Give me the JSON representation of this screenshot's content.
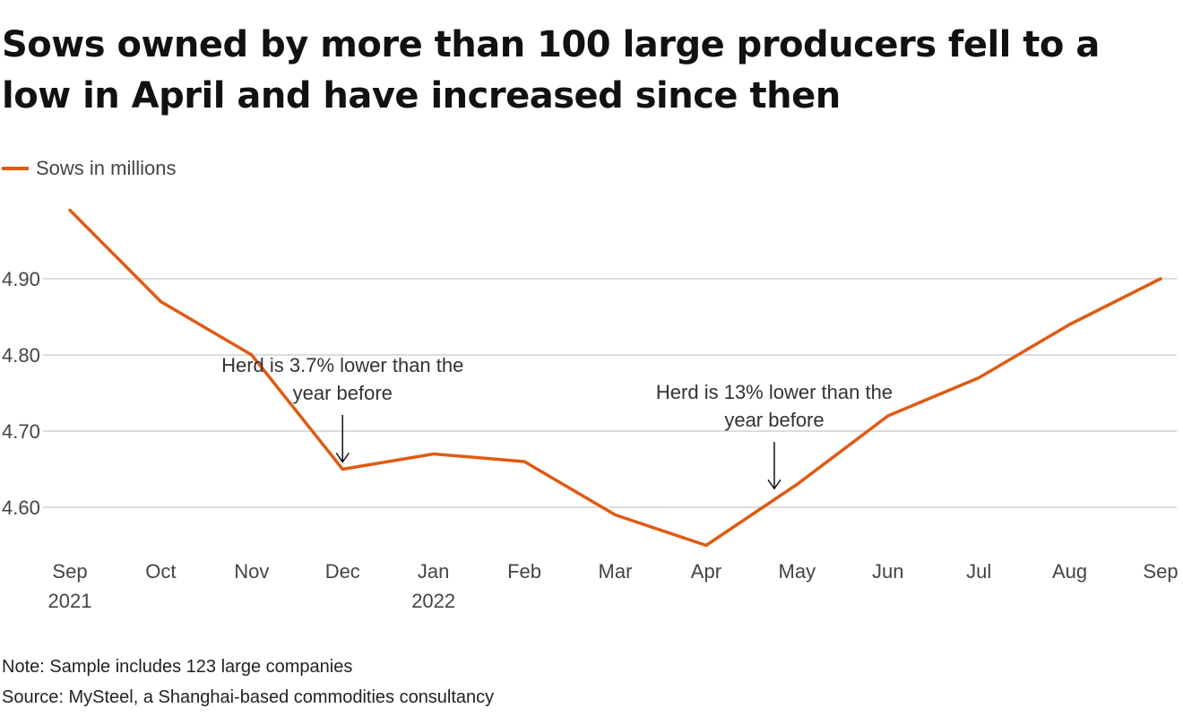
{
  "title": "Sows owned by more than 100 large producers fell to a low in April and have increased since then",
  "legend": {
    "label": "Sows in millions",
    "color": "#e05a12"
  },
  "notes": {
    "note": "Note: Sample includes 123 large companies",
    "source": "Source: MySteel, a Shanghai-based commodities consultancy"
  },
  "chart_data": {
    "type": "line",
    "title": "Sows owned by more than 100 large producers fell to a low in April and have increased since then",
    "xlabel": "",
    "ylabel": "Sows in millions",
    "categories": [
      "Sep",
      "Oct",
      "Nov",
      "Dec",
      "Jan",
      "Feb",
      "Mar",
      "Apr",
      "May",
      "Jun",
      "Jul",
      "Aug",
      "Sep"
    ],
    "category_sublabels": [
      "2021",
      "",
      "",
      "",
      "2022",
      "",
      "",
      "",
      "",
      "",
      "",
      "",
      ""
    ],
    "series": [
      {
        "name": "Sows in millions",
        "values": [
          4.99,
          4.87,
          4.8,
          4.65,
          4.67,
          4.66,
          4.59,
          4.55,
          4.63,
          4.72,
          4.77,
          4.84,
          4.9
        ]
      }
    ],
    "yticks": [
      "4.60",
      "4.70",
      "4.80",
      "4.90"
    ],
    "ytick_values": [
      4.6,
      4.7,
      4.8,
      4.9
    ],
    "ylim": [
      4.55,
      4.99
    ],
    "grid": true,
    "annotations": [
      {
        "lines": [
          "Herd is 3.7% lower than the",
          "year before"
        ],
        "x_index": 3,
        "value": 4.65
      },
      {
        "lines": [
          "Herd is 13% lower than the",
          "year before"
        ],
        "x_index": 7.75,
        "value": 4.615
      }
    ]
  }
}
